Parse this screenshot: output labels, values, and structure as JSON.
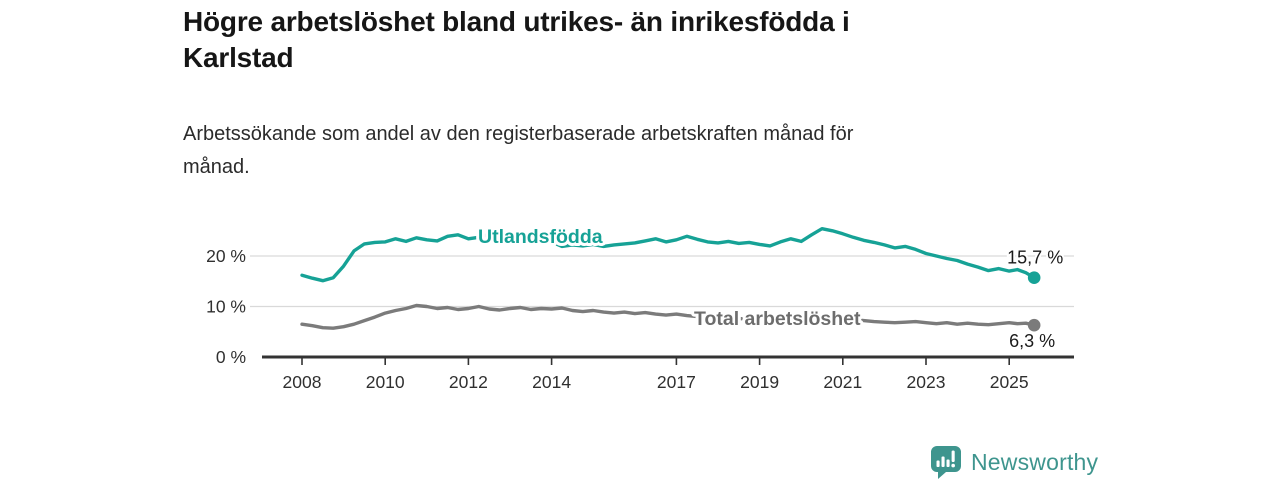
{
  "header": {
    "title_lines": [
      "Högre arbetslöshet bland utrikes- än inrikesfödda i",
      "Karlstad"
    ],
    "subtitle_lines": [
      "Arbetssökande som andel av den registerbaserade arbetskraften månad för",
      "månad."
    ]
  },
  "chart_data": {
    "type": "line",
    "title": "Högre arbetslöshet bland utrikes- än inrikesfödda i Karlstad",
    "subtitle": "Arbetssökande som andel av den registerbaserade arbetskraften månad för månad.",
    "unit": "%",
    "grid": "horizontal",
    "legend_position": "inline-labels",
    "ylim": [
      0,
      27
    ],
    "xlim": [
      2008,
      2026
    ],
    "y_ticks": [
      0,
      10,
      20
    ],
    "y_tick_labels": [
      "0 %",
      "10 %",
      "20 %"
    ],
    "x_tick_years": [
      2008,
      2010,
      2012,
      2014,
      2017,
      2019,
      2021,
      2023,
      2025
    ],
    "x_tick_labels": [
      "2008",
      "2010",
      "2012",
      "2014",
      "2017",
      "2019",
      "2021",
      "2023",
      "2025"
    ],
    "x": [
      2008,
      2008.25,
      2008.5,
      2008.75,
      2009,
      2009.25,
      2009.5,
      2009.75,
      2010,
      2010.25,
      2010.5,
      2010.75,
      2011,
      2011.25,
      2011.5,
      2011.75,
      2012,
      2012.25,
      2012.5,
      2012.75,
      2013,
      2013.25,
      2013.5,
      2013.75,
      2014,
      2014.25,
      2014.5,
      2014.75,
      2015,
      2015.25,
      2015.5,
      2015.75,
      2016,
      2016.25,
      2016.5,
      2016.75,
      2017,
      2017.25,
      2017.5,
      2017.75,
      2018,
      2018.25,
      2018.5,
      2018.75,
      2019,
      2019.25,
      2019.5,
      2019.75,
      2020,
      2020.25,
      2020.5,
      2020.75,
      2021,
      2021.25,
      2021.5,
      2021.75,
      2022,
      2022.25,
      2022.5,
      2022.75,
      2023,
      2023.25,
      2023.5,
      2023.75,
      2024,
      2024.25,
      2024.5,
      2024.75,
      2025,
      2025.2,
      2025.4,
      2025.6
    ],
    "series": [
      {
        "id": "utlandsfodda",
        "name": "Utlandsfödda",
        "color": "#16a296",
        "label_color": "#16a296",
        "end_label": "15,7 %",
        "values": [
          16.2,
          15.6,
          15.1,
          15.7,
          18.0,
          21.0,
          22.4,
          22.7,
          22.8,
          23.4,
          22.9,
          23.6,
          23.2,
          23.0,
          23.9,
          24.2,
          23.4,
          23.7,
          24.3,
          23.0,
          23.3,
          24.0,
          23.5,
          23.1,
          22.8,
          21.9,
          22.2,
          22.0,
          22.3,
          21.9,
          22.2,
          22.4,
          22.6,
          23.0,
          23.4,
          22.8,
          23.2,
          23.9,
          23.3,
          22.8,
          22.6,
          22.9,
          22.5,
          22.7,
          22.3,
          22.0,
          22.8,
          23.4,
          22.9,
          24.2,
          25.4,
          25.0,
          24.4,
          23.7,
          23.1,
          22.7,
          22.2,
          21.6,
          21.9,
          21.3,
          20.5,
          20.0,
          19.5,
          19.1,
          18.4,
          17.8,
          17.1,
          17.5,
          17.0,
          17.3,
          16.7,
          15.7
        ]
      },
      {
        "id": "total-arbetsloshet",
        "name": "Total arbetslöshet",
        "color": "#7b7b7b",
        "label_color": "#6d6d6d",
        "end_label": "6,3 %",
        "values": [
          6.5,
          6.2,
          5.8,
          5.7,
          6.0,
          6.5,
          7.2,
          7.9,
          8.7,
          9.2,
          9.6,
          10.2,
          10.0,
          9.6,
          9.8,
          9.4,
          9.6,
          10.0,
          9.5,
          9.3,
          9.6,
          9.8,
          9.4,
          9.6,
          9.5,
          9.7,
          9.2,
          9.0,
          9.2,
          8.9,
          8.7,
          8.9,
          8.6,
          8.8,
          8.5,
          8.3,
          8.5,
          8.2,
          8.0,
          7.9,
          7.8,
          7.7,
          7.6,
          7.5,
          7.4,
          7.3,
          7.4,
          7.5,
          7.8,
          8.2,
          8.0,
          7.8,
          7.6,
          7.4,
          7.2,
          7.0,
          6.9,
          6.8,
          6.9,
          7.0,
          6.8,
          6.6,
          6.8,
          6.5,
          6.7,
          6.5,
          6.4,
          6.6,
          6.8,
          6.6,
          6.7,
          6.3
        ]
      }
    ]
  },
  "footer": {
    "brand": "Newsworthy"
  }
}
